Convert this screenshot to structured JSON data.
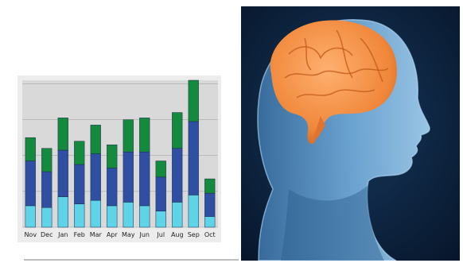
{
  "colors": {
    "plot_background": "#d9d9d9",
    "series_total": "#138a3d",
    "series_middle": "#2f4fa2",
    "series_base": "#5fd3e8",
    "photo_background": "#0c2036",
    "brain": "#f08a3c",
    "head": "#5f9fd4"
  },
  "chart_data": {
    "type": "bar",
    "stacked": true,
    "categories": [
      "Nov",
      "Dec",
      "Jan",
      "Feb",
      "Mar",
      "Apr",
      "May",
      "Jun",
      "Jul",
      "Aug",
      "Sep",
      "Oct"
    ],
    "series": [
      {
        "values": [
          13,
          13,
          18,
          13,
          16,
          13,
          18,
          19,
          9,
          20,
          23,
          8
        ]
      },
      {
        "values": [
          25,
          20,
          26,
          22,
          26,
          21,
          28,
          30,
          19,
          30,
          41,
          13
        ]
      },
      {
        "values": [
          12,
          11,
          17,
          13,
          15,
          12,
          14,
          12,
          9,
          14,
          18,
          6
        ]
      }
    ],
    "ylim": [
      0,
      82
    ],
    "grid": true,
    "axis_ticks_labeled": false,
    "title": "",
    "xlabel": "",
    "ylabel": ""
  },
  "image": {
    "subject": "human head with brain"
  }
}
